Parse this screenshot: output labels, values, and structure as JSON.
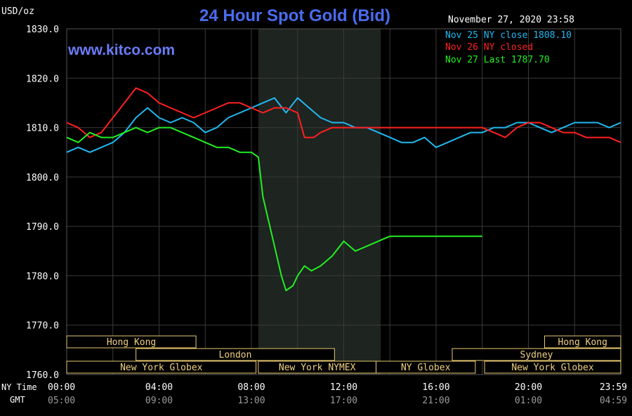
{
  "chart_data": {
    "type": "line",
    "title": "24 Hour Spot Gold (Bid)",
    "watermark": "www.kitco.com",
    "ylabel": "USD/oz",
    "timestamp": "November 27, 2020 23:58",
    "ylim": [
      1760,
      1830
    ],
    "yticks": [
      "1830.0",
      "1820.0",
      "1810.0",
      "1800.0",
      "1790.0",
      "1780.0",
      "1770.0",
      "1760.0"
    ],
    "xlim": [
      0,
      24
    ],
    "x_row_labels": {
      "ny": "NY Time",
      "gmt": "GMT"
    },
    "x_ticks_ny": [
      "00:00",
      "04:00",
      "08:00",
      "12:00",
      "16:00",
      "20:00",
      "23:59"
    ],
    "x_ticks_gmt": [
      "05:00",
      "09:00",
      "13:00",
      "17:00",
      "21:00",
      "01:00",
      "04:59"
    ],
    "shaded_hours": [
      8.3,
      13.6
    ],
    "series": [
      {
        "label": "Nov 25 NY close 1808.10",
        "color": "#22b8f0",
        "x": [
          0,
          0.5,
          1,
          1.5,
          2,
          2.5,
          3,
          3.5,
          4,
          4.5,
          5,
          5.5,
          6,
          6.5,
          7,
          7.5,
          8,
          8.5,
          9,
          9.5,
          10,
          10.5,
          11,
          11.5,
          12,
          12.5,
          13,
          13.5,
          14,
          14.5,
          15,
          15.5,
          16,
          16.5,
          17,
          17.5,
          18,
          18.5,
          19,
          19.5,
          20,
          20.5,
          21,
          21.5,
          22,
          22.5,
          23,
          23.5,
          24
        ],
        "values": [
          1805,
          1806,
          1805,
          1806,
          1807,
          1809,
          1812,
          1814,
          1812,
          1811,
          1812,
          1811,
          1809,
          1810,
          1812,
          1813,
          1814,
          1815,
          1816,
          1813,
          1816,
          1814,
          1812,
          1811,
          1811,
          1810,
          1810,
          1809,
          1808,
          1807,
          1807,
          1808,
          1806,
          1807,
          1808,
          1809,
          1809,
          1810,
          1810,
          1811,
          1811,
          1810,
          1809,
          1810,
          1811,
          1811,
          1811,
          1810,
          1811
        ]
      },
      {
        "label": "Nov 26 NY closed",
        "color": "#ff2020",
        "x": [
          0,
          0.5,
          1,
          1.5,
          2,
          2.5,
          3,
          3.5,
          4,
          4.5,
          5,
          5.5,
          6,
          6.5,
          7,
          7.5,
          8,
          8.5,
          9,
          9.5,
          10,
          10.3,
          10.7,
          11,
          11.5,
          12,
          12.5,
          13,
          13.5,
          14,
          16,
          18,
          18.5,
          19,
          19.5,
          20,
          20.5,
          21,
          21.5,
          22,
          22.5,
          23,
          23.5,
          24
        ],
        "values": [
          1811,
          1810,
          1808,
          1809,
          1812,
          1815,
          1818,
          1817,
          1815,
          1814,
          1813,
          1812,
          1813,
          1814,
          1815,
          1815,
          1814,
          1813,
          1814,
          1814,
          1813,
          1808,
          1808,
          1809,
          1810,
          1810,
          1810,
          1810,
          1810,
          1810,
          1810,
          1810,
          1809,
          1808,
          1810,
          1811,
          1811,
          1810,
          1809,
          1809,
          1808,
          1808,
          1808,
          1807
        ]
      },
      {
        "label": "Nov 27 Last 1787.70",
        "color": "#22ee22",
        "x": [
          0,
          0.5,
          1,
          1.5,
          2,
          2.5,
          3,
          3.5,
          4,
          4.5,
          5,
          5.5,
          6,
          6.5,
          7,
          7.5,
          8,
          8.3,
          8.5,
          8.8,
          9,
          9.3,
          9.5,
          9.8,
          10,
          10.3,
          10.6,
          11,
          11.5,
          12,
          12.5,
          13,
          13.5,
          14,
          15,
          16,
          17,
          18
        ],
        "values": [
          1808,
          1807,
          1809,
          1808,
          1808,
          1809,
          1810,
          1809,
          1810,
          1810,
          1809,
          1808,
          1807,
          1806,
          1806,
          1805,
          1805,
          1804,
          1796,
          1790,
          1786,
          1780,
          1777,
          1778,
          1780,
          1782,
          1781,
          1782,
          1784,
          1787,
          1785,
          1786,
          1787,
          1788,
          1788,
          1788,
          1788,
          1788
        ]
      }
    ],
    "sessions": [
      {
        "label": "Hong Kong",
        "start": 0,
        "end": 5.6,
        "row": 0
      },
      {
        "label": "Hong Kong",
        "start": 20.7,
        "end": 24,
        "row": 0
      },
      {
        "label": "London",
        "start": 3,
        "end": 11.6,
        "row": 1
      },
      {
        "label": "Sydney",
        "start": 16.7,
        "end": 24,
        "row": 1
      },
      {
        "label": "New York Globex",
        "start": 0,
        "end": 8.2,
        "row": 2
      },
      {
        "label": "New York NYMEX",
        "start": 8.3,
        "end": 13.4,
        "row": 2
      },
      {
        "label": "NY Globex",
        "start": 13.4,
        "end": 17.7,
        "row": 2
      },
      {
        "label": "New York Globex",
        "start": 18.1,
        "end": 24,
        "row": 2
      }
    ]
  },
  "colors": {
    "title": "#4a6cf0",
    "watermark": "#6a7cf8",
    "axis_text": "#ffffff",
    "gmt_text": "#9a9a9a",
    "session_text": "#f0d080",
    "session_border": "#e8c870",
    "grid": "#3a3a3a"
  }
}
